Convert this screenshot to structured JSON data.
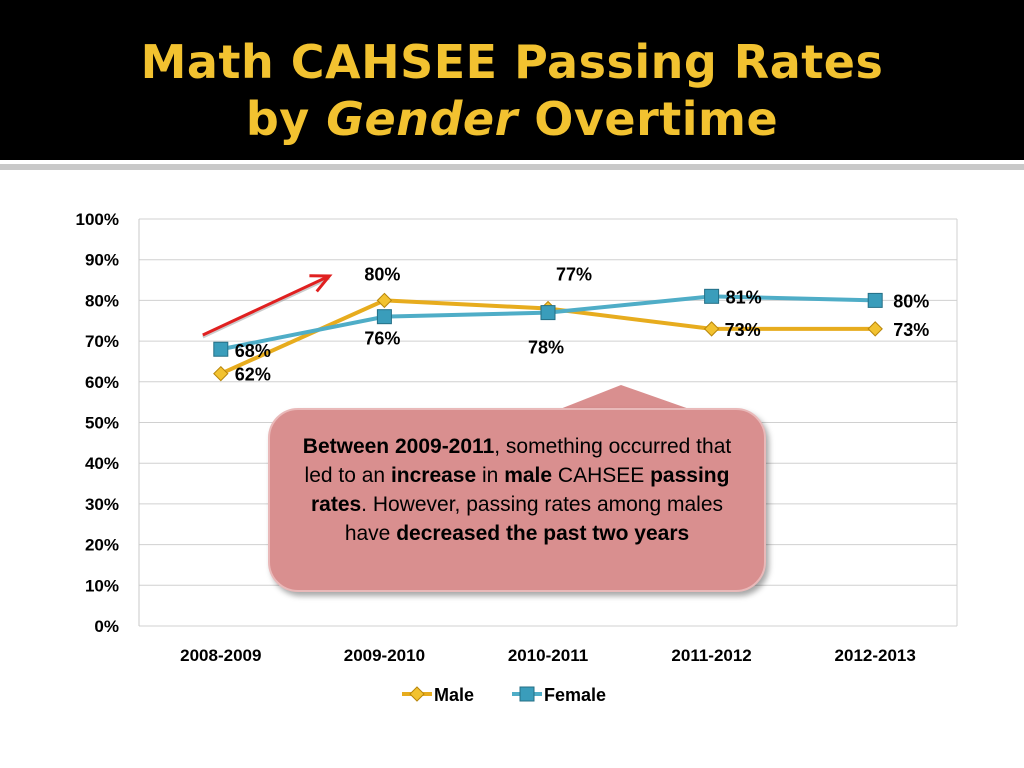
{
  "slide": {
    "title_line1": "Math CAHSEE Passing Rates",
    "title_line2_prefix": "by ",
    "title_line2_em": "Gender",
    "title_line2_suffix": " Overtime"
  },
  "chart_data": {
    "type": "line",
    "categories": [
      "2008-2009",
      "2009-2010",
      "2010-2011",
      "2011-2012",
      "2012-2013"
    ],
    "series": [
      {
        "name": "Male",
        "values": [
          62,
          80,
          78,
          73,
          73
        ],
        "labels": [
          "62%",
          "80%",
          "78%",
          "73%",
          "73%"
        ],
        "color": "#e7ac1e",
        "marker": "diamond"
      },
      {
        "name": "Female",
        "values": [
          68,
          76,
          77,
          81,
          80
        ],
        "labels": [
          "68%",
          "76%",
          "77%",
          "81%",
          "80%"
        ],
        "color": "#4fadc7",
        "marker": "square"
      }
    ],
    "ylim": [
      0,
      100
    ],
    "yticks": [
      "0%",
      "10%",
      "20%",
      "30%",
      "40%",
      "50%",
      "60%",
      "70%",
      "80%",
      "90%",
      "100%"
    ],
    "grid": true,
    "legend_position": "bottom",
    "arrow_color": "#e02020"
  },
  "callout": {
    "p1_bold": "Between 2009-2011",
    "p2": ", something occurred that led to an ",
    "p3_bold": "increase",
    "p4": " in ",
    "p5_bold": "male",
    "p6": " CAHSEE ",
    "p7_bold": "passing rates",
    "p8": ". However, passing rates among males have ",
    "p9_bold": "decreased the past two years"
  }
}
